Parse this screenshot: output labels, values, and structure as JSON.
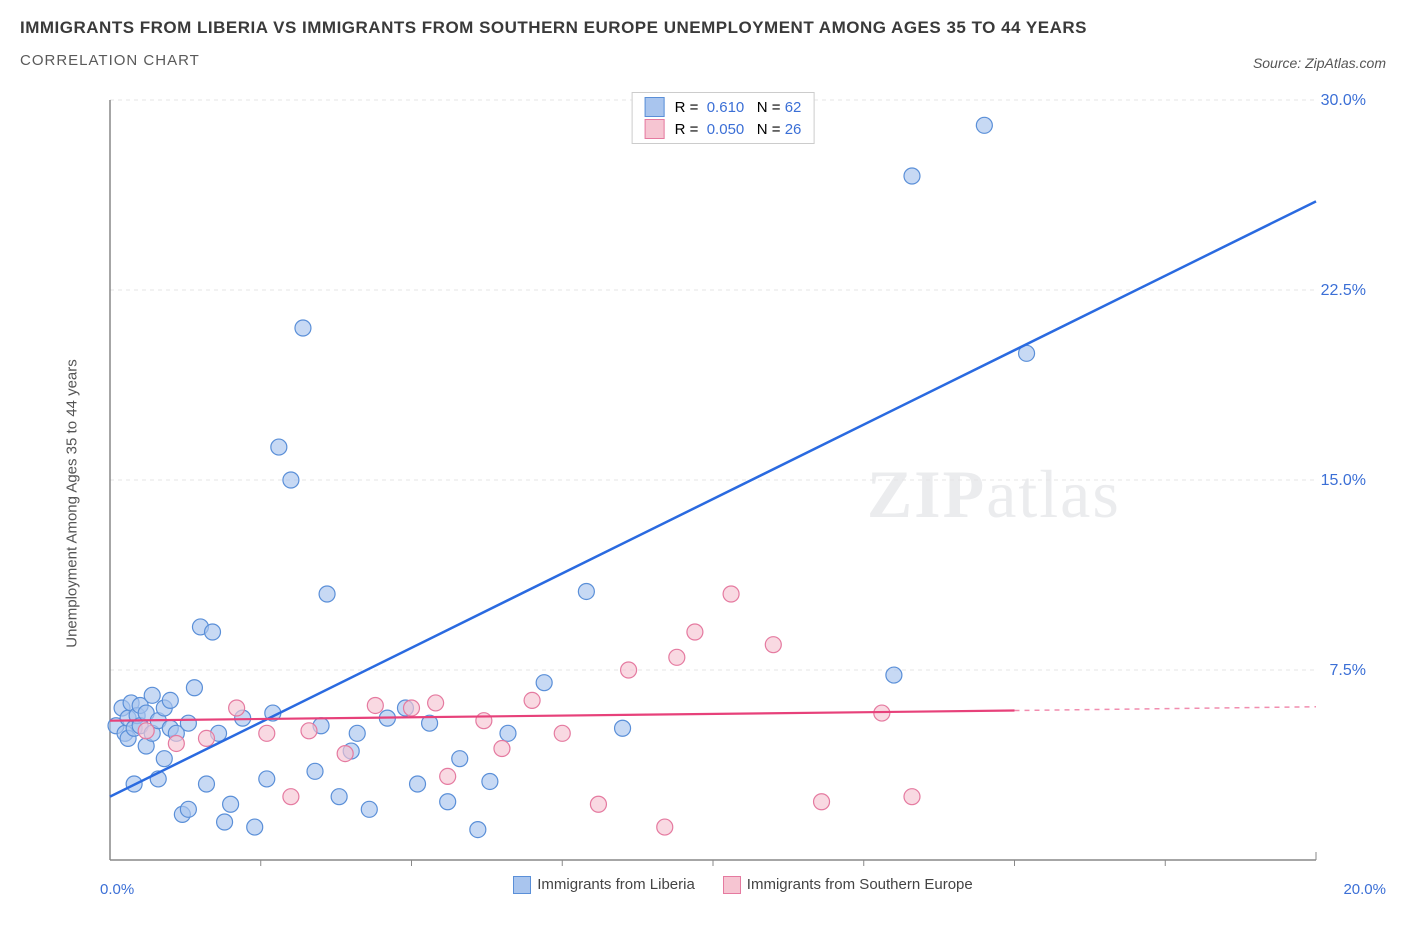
{
  "title": "IMMIGRANTS FROM LIBERIA VS IMMIGRANTS FROM SOUTHERN EUROPE UNEMPLOYMENT AMONG AGES 35 TO 44 YEARS",
  "subtitle": "CORRELATION CHART",
  "source": "Source: ZipAtlas.com",
  "ylabel": "Unemployment Among Ages 35 to 44 years",
  "watermark": {
    "bold": "ZIP",
    "light": "atlas"
  },
  "chart": {
    "type": "scatter",
    "xlim": [
      0,
      20
    ],
    "ylim": [
      0,
      30
    ],
    "x_axis_label_min": "0.0%",
    "x_axis_label_max": "20.0%",
    "y_ticks": [
      7.5,
      15.0,
      22.5,
      30.0
    ],
    "y_tick_labels": [
      "7.5%",
      "15.0%",
      "22.5%",
      "30.0%"
    ],
    "y_tick_color": "#3b6fd6",
    "x_minor_ticks": [
      2.5,
      5,
      7.5,
      10,
      12.5,
      15,
      17.5
    ],
    "grid_color": "#e5e5e5",
    "axis_color": "#888888",
    "background_color": "#ffffff",
    "series": [
      {
        "name": "Immigrants from Liberia",
        "color_fill": "#a9c5ee",
        "color_stroke": "#5a8fd8",
        "trend_color": "#2a6ae0",
        "trend_width": 2.5,
        "R": "0.610",
        "N": "62",
        "trend_line": {
          "x1": 0,
          "y1": 2.5,
          "x2": 20,
          "y2": 26.0
        },
        "points": [
          [
            0.1,
            5.3
          ],
          [
            0.2,
            6.0
          ],
          [
            0.25,
            5.0
          ],
          [
            0.3,
            5.6
          ],
          [
            0.3,
            4.8
          ],
          [
            0.35,
            6.2
          ],
          [
            0.4,
            5.2
          ],
          [
            0.4,
            3.0
          ],
          [
            0.45,
            5.7
          ],
          [
            0.5,
            5.3
          ],
          [
            0.5,
            6.1
          ],
          [
            0.6,
            5.8
          ],
          [
            0.6,
            4.5
          ],
          [
            0.7,
            6.5
          ],
          [
            0.7,
            5.0
          ],
          [
            0.8,
            5.5
          ],
          [
            0.8,
            3.2
          ],
          [
            0.9,
            6.0
          ],
          [
            0.9,
            4.0
          ],
          [
            1.0,
            5.2
          ],
          [
            1.0,
            6.3
          ],
          [
            1.1,
            5.0
          ],
          [
            1.2,
            1.8
          ],
          [
            1.3,
            2.0
          ],
          [
            1.3,
            5.4
          ],
          [
            1.4,
            6.8
          ],
          [
            1.5,
            9.2
          ],
          [
            1.6,
            3.0
          ],
          [
            1.7,
            9.0
          ],
          [
            1.8,
            5.0
          ],
          [
            1.9,
            1.5
          ],
          [
            2.0,
            2.2
          ],
          [
            2.2,
            5.6
          ],
          [
            2.4,
            1.3
          ],
          [
            2.6,
            3.2
          ],
          [
            2.7,
            5.8
          ],
          [
            2.8,
            16.3
          ],
          [
            3.0,
            15.0
          ],
          [
            3.2,
            21.0
          ],
          [
            3.4,
            3.5
          ],
          [
            3.5,
            5.3
          ],
          [
            3.6,
            10.5
          ],
          [
            3.8,
            2.5
          ],
          [
            4.0,
            4.3
          ],
          [
            4.1,
            5.0
          ],
          [
            4.3,
            2.0
          ],
          [
            4.6,
            5.6
          ],
          [
            4.9,
            6.0
          ],
          [
            5.1,
            3.0
          ],
          [
            5.3,
            5.4
          ],
          [
            5.6,
            2.3
          ],
          [
            5.8,
            4.0
          ],
          [
            6.1,
            1.2
          ],
          [
            6.3,
            3.1
          ],
          [
            6.6,
            5.0
          ],
          [
            7.2,
            7.0
          ],
          [
            7.9,
            10.6
          ],
          [
            8.5,
            5.2
          ],
          [
            13.3,
            27.0
          ],
          [
            14.5,
            29.0
          ],
          [
            15.2,
            20.0
          ],
          [
            13.0,
            7.3
          ]
        ]
      },
      {
        "name": "Immigrants from Southern Europe",
        "color_fill": "#f6c5d2",
        "color_stroke": "#e57aa0",
        "trend_color": "#e7417a",
        "trend_width": 2.2,
        "R": "0.050",
        "N": "26",
        "trend_line": {
          "x1": 0,
          "y1": 5.5,
          "x2": 15,
          "y2": 5.9
        },
        "trend_extrapolate": {
          "x1": 15,
          "y1": 5.9,
          "x2": 20,
          "y2": 6.05
        },
        "points": [
          [
            0.6,
            5.1
          ],
          [
            1.1,
            4.6
          ],
          [
            1.6,
            4.8
          ],
          [
            2.1,
            6.0
          ],
          [
            2.6,
            5.0
          ],
          [
            3.0,
            2.5
          ],
          [
            3.3,
            5.1
          ],
          [
            3.9,
            4.2
          ],
          [
            4.4,
            6.1
          ],
          [
            5.0,
            6.0
          ],
          [
            5.4,
            6.2
          ],
          [
            5.6,
            3.3
          ],
          [
            6.2,
            5.5
          ],
          [
            6.5,
            4.4
          ],
          [
            7.0,
            6.3
          ],
          [
            7.5,
            5.0
          ],
          [
            8.1,
            2.2
          ],
          [
            8.6,
            7.5
          ],
          [
            9.2,
            1.3
          ],
          [
            9.4,
            8.0
          ],
          [
            9.7,
            9.0
          ],
          [
            10.3,
            10.5
          ],
          [
            11.0,
            8.5
          ],
          [
            11.8,
            2.3
          ],
          [
            12.8,
            5.8
          ],
          [
            13.3,
            2.5
          ]
        ]
      }
    ],
    "legend_bottom": [
      {
        "label": "Immigrants from Liberia",
        "fill": "#a9c5ee",
        "stroke": "#5a8fd8"
      },
      {
        "label": "Immigrants from Southern Europe",
        "fill": "#f6c5d2",
        "stroke": "#e57aa0"
      }
    ]
  }
}
